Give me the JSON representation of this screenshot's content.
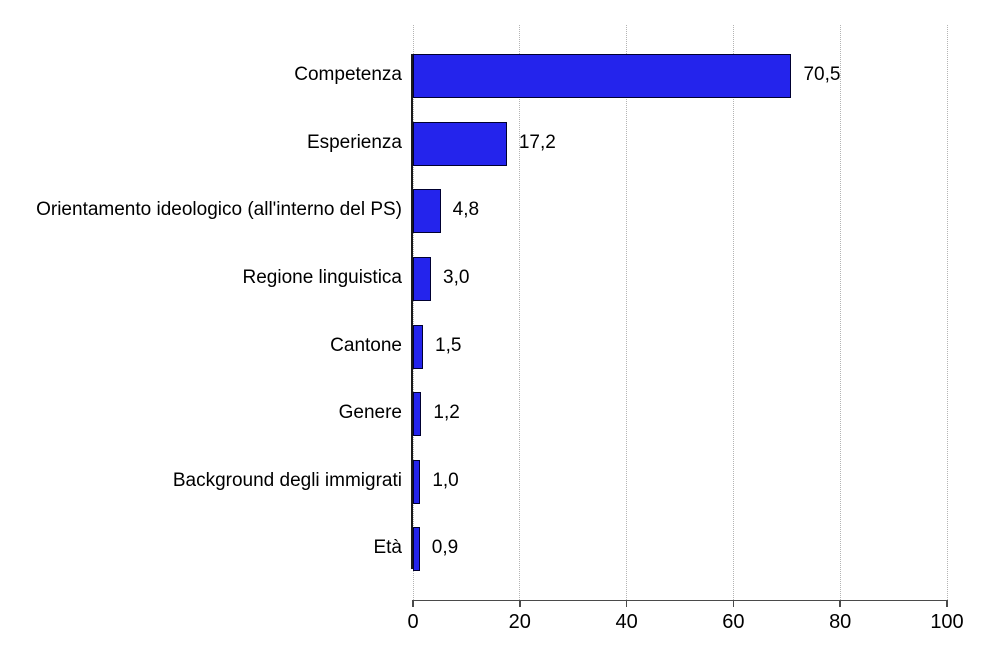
{
  "chart_data": {
    "type": "bar",
    "orientation": "horizontal",
    "title": "",
    "xlabel": "",
    "ylabel": "",
    "categories": [
      "Competenza",
      "Esperienza",
      "Orientamento ideologico (all'interno del PS)",
      "Regione linguistica",
      "Cantone",
      "Genere",
      "Background degli immigrati",
      "Età"
    ],
    "values": [
      70.5,
      17.2,
      4.8,
      3.0,
      1.5,
      1.2,
      1.0,
      0.9
    ],
    "value_labels": [
      "70,5",
      "17,2",
      "4,8",
      "3,0",
      "1,5",
      "1,2",
      "1,0",
      "0,9"
    ],
    "xlim": [
      0,
      100
    ],
    "x_ticks": [
      0,
      20,
      40,
      60,
      80,
      100
    ],
    "x_tick_labels": [
      "0",
      "20",
      "40",
      "60",
      "80",
      "100"
    ],
    "grid": "dotted-vertical",
    "legend": "none",
    "colors": {
      "bar_fill": "#2424ec",
      "bar_border": "#000030",
      "grid_line": "#b4b4b4",
      "axis_line": "#4a4a4a",
      "text": "#000000",
      "background": "#ffffff"
    }
  }
}
